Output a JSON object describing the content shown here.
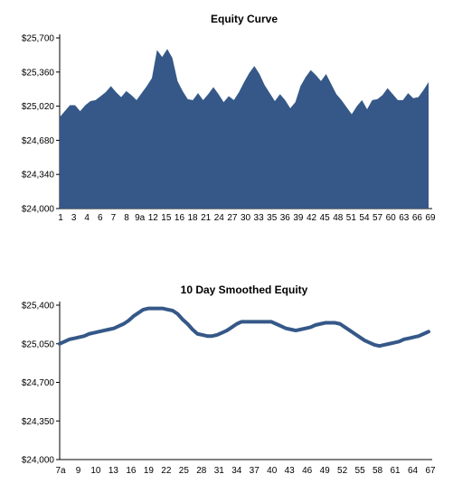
{
  "chart_data": [
    {
      "type": "area",
      "title": "Equity Curve",
      "xlabel": "",
      "ylabel": "",
      "ylim": [
        24000,
        25700
      ],
      "yticks": [
        "$24,000",
        "$24,340",
        "$24,680",
        "$25,020",
        "$25,360",
        "$25,700"
      ],
      "ytick_values": [
        24000,
        24340,
        24680,
        25020,
        25360,
        25700
      ],
      "xticks": [
        "1",
        "3",
        "4",
        "6",
        "7",
        "8",
        "9a",
        "12",
        "15",
        "16",
        "18",
        "21",
        "24",
        "27",
        "30",
        "33",
        "35",
        "36",
        "39",
        "42",
        "45",
        "48",
        "51",
        "54",
        "57",
        "60",
        "63",
        "66",
        "69"
      ],
      "grid": false,
      "legend": "none",
      "color": "#355888",
      "values": [
        24910,
        24970,
        25030,
        25030,
        24970,
        25030,
        25070,
        25080,
        25120,
        25160,
        25220,
        25160,
        25110,
        25170,
        25130,
        25080,
        25150,
        25220,
        25300,
        25580,
        25510,
        25590,
        25500,
        25270,
        25170,
        25090,
        25080,
        25150,
        25080,
        25140,
        25210,
        25140,
        25060,
        25120,
        25080,
        25160,
        25260,
        25350,
        25420,
        25340,
        25230,
        25150,
        25070,
        25140,
        25080,
        25000,
        25060,
        25220,
        25310,
        25380,
        25330,
        25270,
        25340,
        25240,
        25140,
        25080,
        25010,
        24940,
        25020,
        25080,
        24990,
        25080,
        25090,
        25130,
        25200,
        25140,
        25080,
        25080,
        25150,
        25100,
        25110,
        25180,
        25260
      ]
    },
    {
      "type": "line",
      "title": "10 Day Smoothed Equity",
      "xlabel": "",
      "ylabel": "",
      "ylim": [
        24000,
        25400
      ],
      "yticks": [
        "$24,000",
        "$24,350",
        "$24,700",
        "$25,050",
        "$25,400"
      ],
      "ytick_values": [
        24000,
        24350,
        24700,
        25050,
        25400
      ],
      "xticks": [
        "7a",
        "9",
        "10",
        "13",
        "16",
        "19",
        "22",
        "25",
        "28",
        "31",
        "34",
        "37",
        "40",
        "43",
        "46",
        "49",
        "52",
        "55",
        "58",
        "61",
        "64",
        "67"
      ],
      "grid": false,
      "legend": "none",
      "color": "#355888",
      "values": [
        25050,
        25070,
        25090,
        25100,
        25110,
        25120,
        25140,
        25150,
        25160,
        25170,
        25180,
        25190,
        25210,
        25230,
        25260,
        25300,
        25330,
        25360,
        25370,
        25370,
        25370,
        25370,
        25360,
        25350,
        25320,
        25270,
        25230,
        25180,
        25140,
        25130,
        25120,
        25120,
        25130,
        25150,
        25170,
        25200,
        25230,
        25250,
        25250,
        25250,
        25250,
        25250,
        25250,
        25250,
        25230,
        25210,
        25190,
        25180,
        25170,
        25180,
        25190,
        25200,
        25220,
        25230,
        25240,
        25240,
        25240,
        25230,
        25200,
        25170,
        25140,
        25110,
        25080,
        25060,
        25040,
        25030,
        25040,
        25050,
        25060,
        25070,
        25090,
        25100,
        25110,
        25120,
        25140,
        25160
      ]
    }
  ]
}
